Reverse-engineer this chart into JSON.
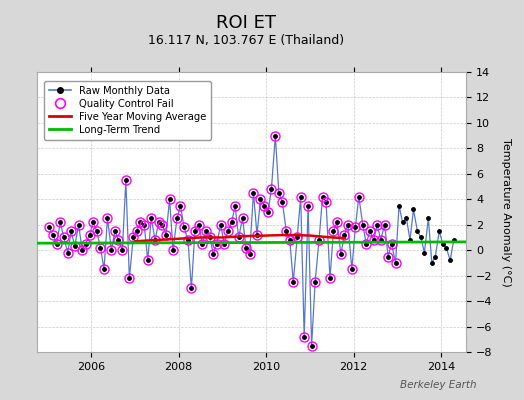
{
  "title": "ROI ET",
  "subtitle": "16.117 N, 103.767 E (Thailand)",
  "ylabel": "Temperature Anomaly (°C)",
  "watermark": "Berkeley Earth",
  "ylim": [
    -8,
    14
  ],
  "yticks": [
    -8,
    -6,
    -4,
    -2,
    0,
    2,
    4,
    6,
    8,
    10,
    12,
    14
  ],
  "xlim_start": 2004.75,
  "xlim_end": 2014.58,
  "xticks": [
    2006,
    2008,
    2010,
    2012,
    2014
  ],
  "bg_color": "#d8d8d8",
  "plot_bg_color": "#ffffff",
  "grid_color": "#cccccc",
  "raw_color": "#5577cc",
  "raw_dot_color": "#000000",
  "qc_color": "#ff00ff",
  "ma_color": "#dd0000",
  "trend_color": "#00bb00",
  "raw_data": {
    "times": [
      2005.04,
      2005.12,
      2005.21,
      2005.29,
      2005.37,
      2005.46,
      2005.54,
      2005.62,
      2005.71,
      2005.79,
      2005.87,
      2005.96,
      2006.04,
      2006.12,
      2006.21,
      2006.29,
      2006.37,
      2006.46,
      2006.54,
      2006.62,
      2006.71,
      2006.79,
      2006.87,
      2006.96,
      2007.04,
      2007.12,
      2007.21,
      2007.29,
      2007.37,
      2007.46,
      2007.54,
      2007.62,
      2007.71,
      2007.79,
      2007.87,
      2007.96,
      2008.04,
      2008.12,
      2008.21,
      2008.29,
      2008.37,
      2008.46,
      2008.54,
      2008.62,
      2008.71,
      2008.79,
      2008.87,
      2008.96,
      2009.04,
      2009.12,
      2009.21,
      2009.29,
      2009.37,
      2009.46,
      2009.54,
      2009.62,
      2009.71,
      2009.79,
      2009.87,
      2009.96,
      2010.04,
      2010.12,
      2010.21,
      2010.29,
      2010.37,
      2010.46,
      2010.54,
      2010.62,
      2010.71,
      2010.79,
      2010.87,
      2010.96,
      2011.04,
      2011.12,
      2011.21,
      2011.29,
      2011.37,
      2011.46,
      2011.54,
      2011.62,
      2011.71,
      2011.79,
      2011.87,
      2011.96,
      2012.04,
      2012.12,
      2012.21,
      2012.29,
      2012.37,
      2012.46,
      2012.54,
      2012.62,
      2012.71,
      2012.79,
      2012.87,
      2012.96,
      2013.04,
      2013.12,
      2013.21,
      2013.29,
      2013.37,
      2013.46,
      2013.54,
      2013.62,
      2013.71,
      2013.79,
      2013.87,
      2013.96,
      2014.04,
      2014.12,
      2014.21,
      2014.29
    ],
    "values": [
      1.8,
      1.2,
      0.5,
      2.2,
      1.0,
      -0.2,
      1.5,
      0.3,
      2.0,
      0.0,
      0.5,
      1.2,
      2.2,
      1.5,
      0.2,
      -1.5,
      2.5,
      0.0,
      1.5,
      0.8,
      0.0,
      5.5,
      -2.2,
      1.0,
      1.5,
      2.2,
      2.0,
      -0.8,
      2.5,
      0.8,
      2.2,
      2.0,
      1.2,
      4.0,
      0.0,
      2.5,
      3.5,
      1.8,
      0.8,
      -3.0,
      1.5,
      2.0,
      0.5,
      1.5,
      1.0,
      -0.3,
      0.5,
      2.0,
      0.5,
      1.5,
      2.2,
      3.5,
      1.0,
      2.5,
      0.2,
      -0.3,
      4.5,
      1.2,
      4.0,
      3.5,
      3.0,
      4.8,
      9.0,
      4.5,
      3.8,
      1.5,
      0.8,
      -2.5,
      1.0,
      4.2,
      -6.8,
      3.5,
      -7.5,
      -2.5,
      0.8,
      4.2,
      3.8,
      -2.2,
      1.5,
      2.2,
      -0.3,
      1.2,
      2.0,
      -1.5,
      1.8,
      4.2,
      2.0,
      0.5,
      1.5,
      0.8,
      2.0,
      0.8,
      2.0,
      -0.5,
      0.5,
      -1.0,
      3.5,
      2.2,
      2.5,
      0.8,
      3.2,
      1.5,
      1.0,
      -0.2,
      2.5,
      -1.0,
      -0.5,
      1.5,
      0.5,
      0.2,
      -0.8,
      0.8
    ],
    "qc_fail": [
      true,
      true,
      true,
      true,
      true,
      true,
      true,
      true,
      true,
      true,
      true,
      true,
      true,
      true,
      true,
      true,
      true,
      true,
      true,
      true,
      true,
      true,
      true,
      true,
      true,
      true,
      true,
      true,
      true,
      true,
      true,
      true,
      true,
      true,
      true,
      true,
      true,
      true,
      true,
      true,
      true,
      true,
      true,
      true,
      true,
      true,
      true,
      true,
      true,
      true,
      true,
      true,
      true,
      true,
      true,
      true,
      true,
      true,
      true,
      true,
      true,
      true,
      true,
      true,
      true,
      true,
      true,
      true,
      true,
      true,
      true,
      true,
      true,
      true,
      true,
      true,
      true,
      true,
      true,
      true,
      true,
      true,
      true,
      true,
      true,
      true,
      true,
      true,
      true,
      true,
      true,
      true,
      true,
      true,
      true,
      true,
      false,
      false,
      false,
      false,
      false,
      false,
      false,
      false,
      false,
      false,
      false,
      false,
      false,
      false,
      false,
      false
    ]
  },
  "ma_data": {
    "times": [
      2007.0,
      2007.5,
      2008.0,
      2008.5,
      2009.0,
      2009.5,
      2010.0,
      2010.5,
      2011.0,
      2011.5,
      2011.8
    ],
    "values": [
      0.7,
      0.8,
      0.9,
      1.0,
      1.0,
      1.1,
      1.15,
      1.2,
      1.15,
      1.0,
      0.95
    ]
  },
  "trend_data": {
    "times": [
      2004.75,
      2014.58
    ],
    "values": [
      0.55,
      0.65
    ]
  },
  "figsize": [
    5.24,
    4.0
  ],
  "dpi": 100,
  "title_fontsize": 13,
  "subtitle_fontsize": 9,
  "tick_fontsize": 8,
  "ylabel_fontsize": 8
}
